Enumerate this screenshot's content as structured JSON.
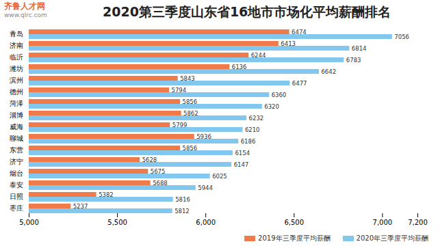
{
  "chart_data": {
    "type": "bar",
    "orientation": "horizontal",
    "title": "2020第三季度山东省16地市市场化平均薪酬排名",
    "annotations": [
      "齐鲁人才网",
      "www.qlrc.com"
    ],
    "categories": [
      "青岛",
      "济南",
      "临沂",
      "潍坊",
      "滨州",
      "德州",
      "菏泽",
      "淄博",
      "威海",
      "聊城",
      "东营",
      "济宁",
      "烟台",
      "泰安",
      "日照",
      "枣庄"
    ],
    "series": [
      {
        "name": "2019年三季度平均薪酬",
        "color": "#f07a4a",
        "values": [
          6474,
          6413,
          6244,
          6136,
          5843,
          5794,
          5856,
          5862,
          5799,
          5936,
          5856,
          5628,
          5675,
          5688,
          5382,
          5237
        ]
      },
      {
        "name": "2020年三季度平均薪酬",
        "color": "#82c8ee",
        "values": [
          7056,
          6814,
          6783,
          6642,
          6477,
          6360,
          6320,
          6232,
          6210,
          6186,
          6154,
          6147,
          6025,
          5944,
          5816,
          5812
        ]
      }
    ],
    "xlim": [
      5000,
      7200
    ],
    "xticks": [
      {
        "value": 5000,
        "label": "5,000"
      },
      {
        "value": 5500,
        "label": "5,500"
      },
      {
        "value": 6000,
        "label": "6,000"
      },
      {
        "value": 6500,
        "label": "6,500"
      },
      {
        "value": 7000,
        "label": "7,000"
      },
      {
        "value": 7200,
        "label": "7,200"
      }
    ],
    "grid": false,
    "data_labels": true,
    "legend": "bottom-right"
  }
}
